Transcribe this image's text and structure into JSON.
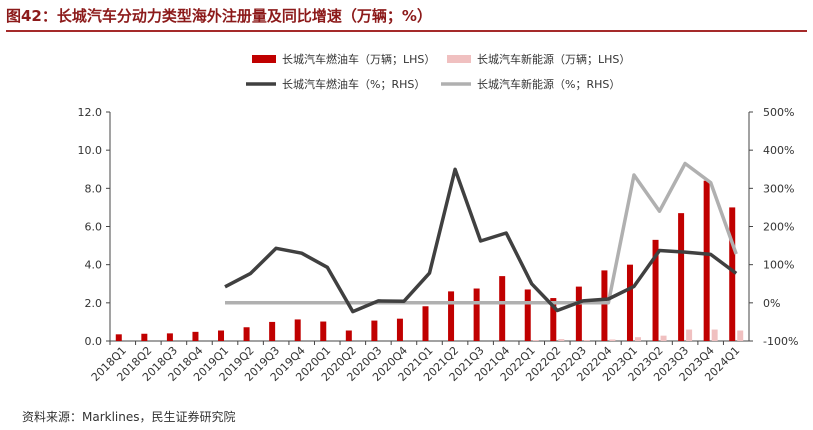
{
  "header": {
    "title": "图42：长城汽车分动力类型海外注册量及同比增速（万辆；%）"
  },
  "footer": {
    "source": "资料来源：Marklines，民生证券研究院"
  },
  "colors": {
    "fuel_bar": "#c00000",
    "nev_bar": "#f0c0c0",
    "fuel_line": "#404040",
    "nev_line": "#b0b0b0",
    "title": "#8c1a1a"
  },
  "chart_data": {
    "type": "bar",
    "categories": [
      "2018Q1",
      "2018Q2",
      "2018Q3",
      "2018Q4",
      "2019Q1",
      "2019Q2",
      "2019Q3",
      "2019Q4",
      "2020Q1",
      "2020Q2",
      "2020Q3",
      "2020Q4",
      "2021Q1",
      "2021Q2",
      "2021Q3",
      "2021Q4",
      "2022Q1",
      "2022Q2",
      "2022Q3",
      "2022Q4",
      "2023Q1",
      "2023Q2",
      "2023Q3",
      "2023Q4",
      "2024Q1"
    ],
    "series": [
      {
        "name": "长城汽车燃油车（万辆；LHS）",
        "kind": "bar",
        "axis": "left",
        "values": [
          0.35,
          0.38,
          0.4,
          0.48,
          0.55,
          0.72,
          1.0,
          1.13,
          1.02,
          0.55,
          1.07,
          1.17,
          1.82,
          2.6,
          2.75,
          3.4,
          2.7,
          2.25,
          2.85,
          3.7,
          4.0,
          5.3,
          6.7,
          8.4,
          7.0
        ]
      },
      {
        "name": "长城汽车新能源（万辆；LHS）",
        "kind": "bar",
        "axis": "left",
        "values": [
          0,
          0,
          0,
          0,
          0,
          0,
          0,
          0,
          0,
          0,
          0,
          0,
          0,
          0,
          0,
          0,
          0.05,
          0.1,
          0.05,
          0.08,
          0.2,
          0.28,
          0.6,
          0.6,
          0.55
        ]
      },
      {
        "name": "长城汽车燃油车（%；RHS）",
        "kind": "line",
        "axis": "right",
        "values": [
          null,
          null,
          null,
          null,
          42,
          77,
          143,
          130,
          93,
          -23,
          5,
          4,
          78,
          350,
          162,
          183,
          50,
          -20,
          5,
          10,
          43,
          137,
          133,
          127,
          77
        ]
      },
      {
        "name": "长城汽车新能源（%；RHS）",
        "kind": "line",
        "axis": "right",
        "values": [
          null,
          null,
          null,
          null,
          0,
          0,
          0,
          0,
          0,
          0,
          0,
          0,
          0,
          0,
          0,
          0,
          0,
          0,
          0,
          0,
          335,
          240,
          365,
          315,
          128
        ]
      }
    ],
    "y_left": {
      "min": 0,
      "max": 12,
      "ticks": [
        "0.0",
        "2.0",
        "4.0",
        "6.0",
        "8.0",
        "10.0",
        "12.0"
      ]
    },
    "y_right": {
      "min": -100,
      "max": 500,
      "ticks": [
        "-100%",
        "0%",
        "100%",
        "200%",
        "300%",
        "400%",
        "500%"
      ]
    },
    "legend_position": "top-center",
    "grid": false
  }
}
